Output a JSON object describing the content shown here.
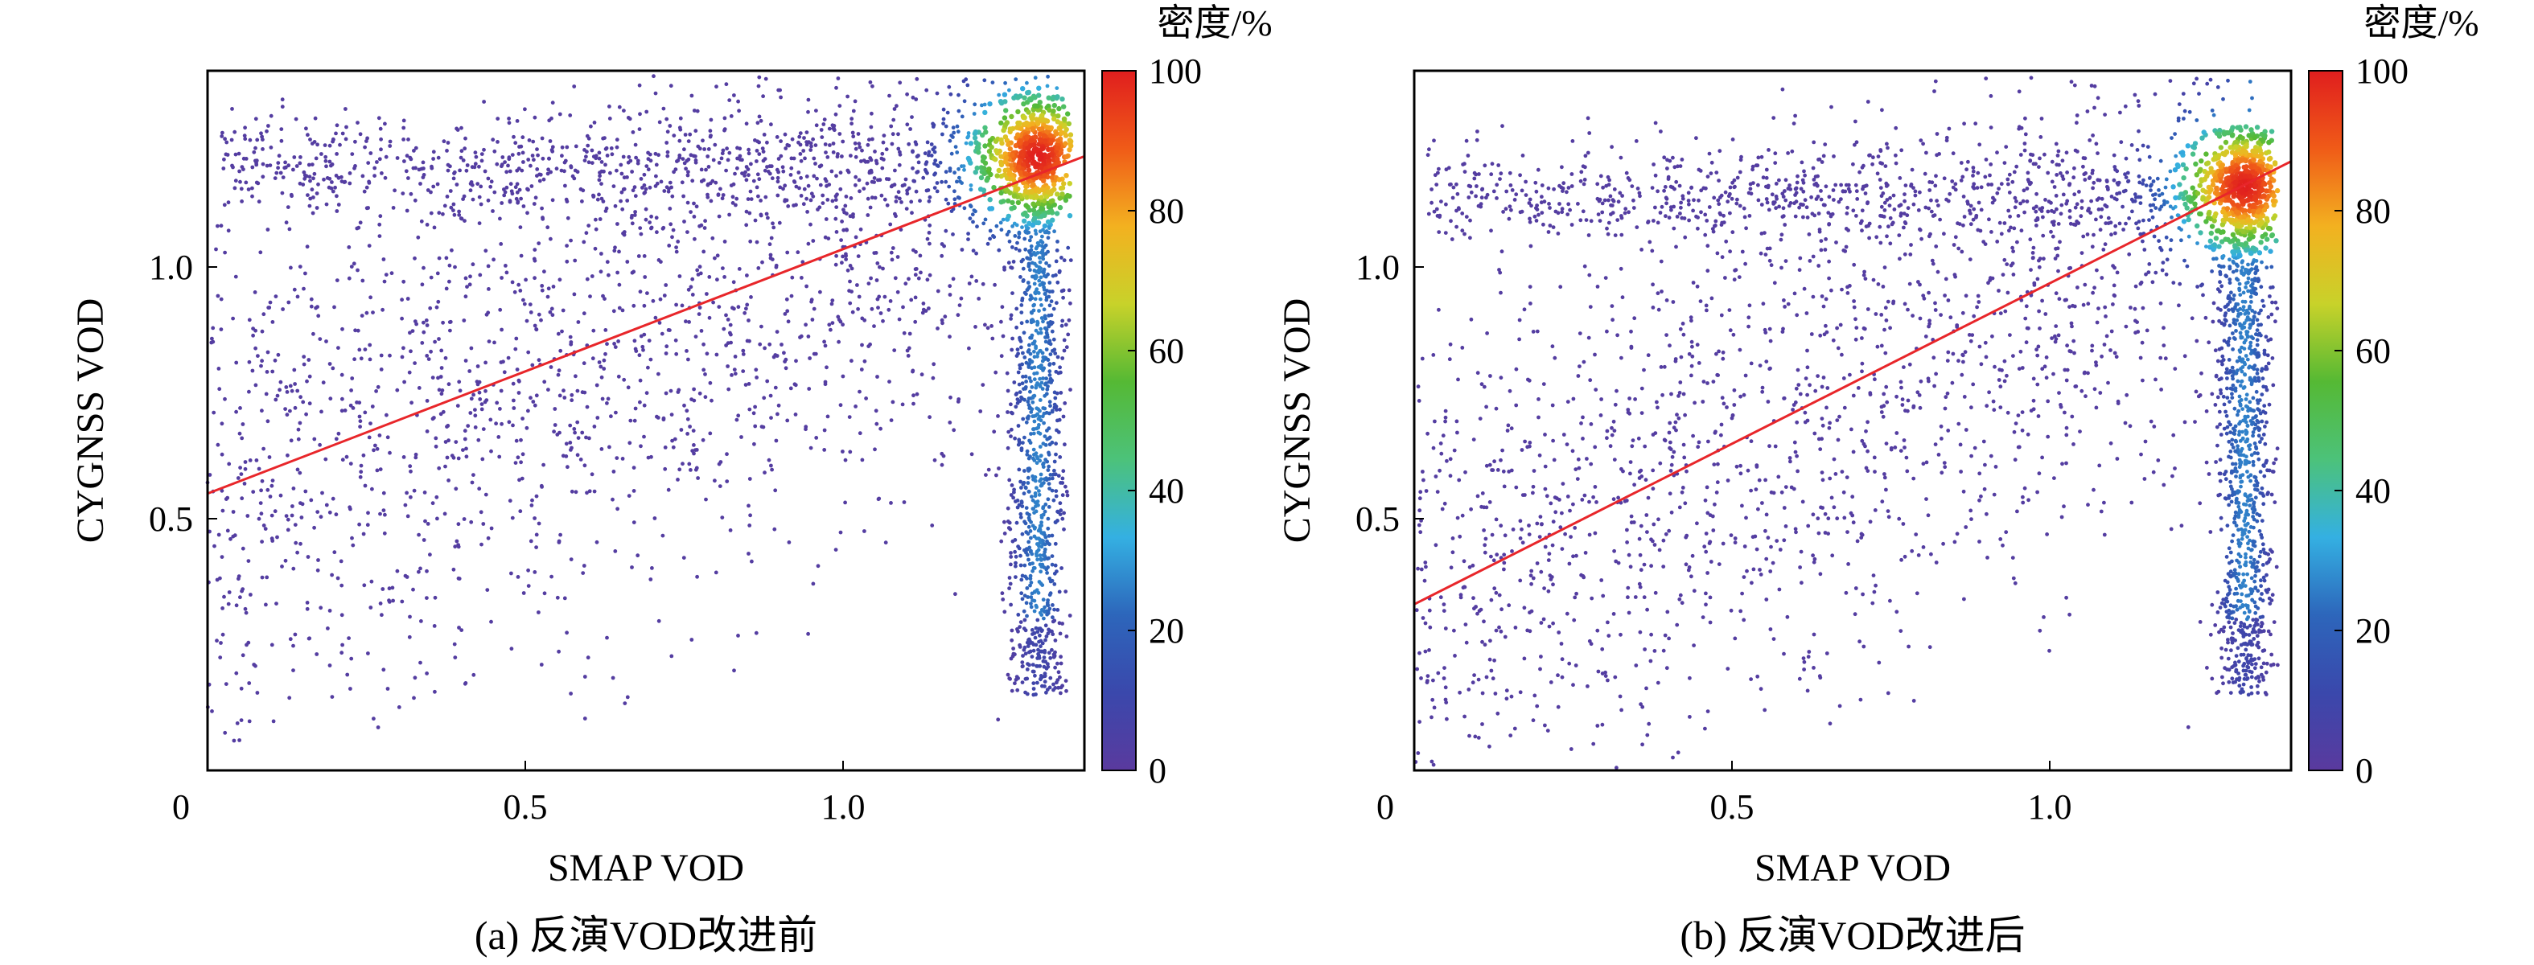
{
  "colorbar_stops": [
    "#5a3a9e",
    "#3a48ac",
    "#2d66bb",
    "#34b0e2",
    "#4cc27a",
    "#55b934",
    "#c8d22a",
    "#f3b120",
    "#f05b18",
    "#e01e1e"
  ],
  "chart_data": [
    {
      "type": "scatter",
      "subtype": "density-scatter",
      "caption": "(a) 反演VOD改进前",
      "xlabel": "SMAP VOD",
      "ylabel": "CYGNSS VOD",
      "xlim": [
        0,
        1.32
      ],
      "ylim": [
        0,
        1.39
      ],
      "xticks": [
        {
          "v": 0,
          "label": "0"
        },
        {
          "v": 0.5,
          "label": "0.5"
        },
        {
          "v": 1.0,
          "label": "1.0"
        }
      ],
      "yticks": [
        {
          "v": 0.5,
          "label": "0.5"
        },
        {
          "v": 1.0,
          "label": "1.0"
        }
      ],
      "regression_line": {
        "x": [
          0,
          1.32
        ],
        "y": [
          0.55,
          1.22
        ],
        "color": "#e8262a"
      },
      "density_peak": {
        "x": 1.25,
        "y": 1.22
      },
      "colorbar": {
        "title": "密度/%",
        "ticks": [
          "0",
          "20",
          "40",
          "60",
          "80",
          "100"
        ],
        "values": [
          0,
          20,
          40,
          60,
          80,
          100
        ]
      }
    },
    {
      "type": "scatter",
      "subtype": "density-scatter",
      "caption": "(b) 反演VOD改进后",
      "xlabel": "SMAP VOD",
      "ylabel": "CYGNSS VOD",
      "xlim": [
        0,
        1.32
      ],
      "ylim": [
        0,
        1.39
      ],
      "xticks": [
        {
          "v": 0,
          "label": "0"
        },
        {
          "v": 0.5,
          "label": "0.5"
        },
        {
          "v": 1.0,
          "label": "1.0"
        }
      ],
      "yticks": [
        {
          "v": 0.5,
          "label": "0.5"
        },
        {
          "v": 1.0,
          "label": "1.0"
        }
      ],
      "regression_line": {
        "x": [
          0,
          1.32
        ],
        "y": [
          0.33,
          1.21
        ],
        "color": "#e8262a"
      },
      "density_peak": {
        "x": 1.25,
        "y": 1.16
      },
      "colorbar": {
        "title": "密度/%",
        "ticks": [
          "0",
          "20",
          "40",
          "60",
          "80",
          "100"
        ],
        "values": [
          0,
          20,
          40,
          60,
          80,
          100
        ]
      }
    }
  ]
}
